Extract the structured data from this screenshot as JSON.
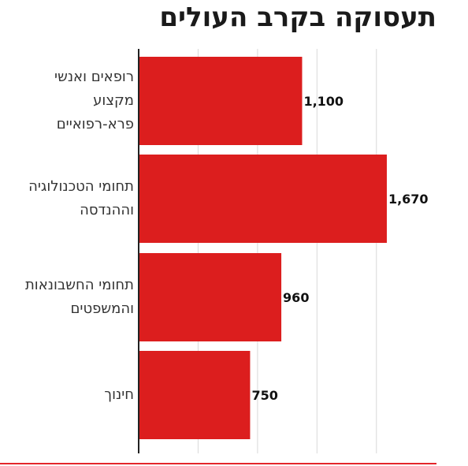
{
  "chart_data": {
    "type": "bar",
    "orientation": "horizontal",
    "title": "תעסוקה בקרב העולים",
    "categories": [
      [
        "רופאים ואנשי",
        "מקצוע",
        "פרא-רפואיים"
      ],
      [
        "תחומי הטכנולוגיה",
        "וההנדסה"
      ],
      [
        "תחומי החשבונאות",
        "והמשפטים"
      ],
      [
        "חינוך"
      ]
    ],
    "values": [
      1100,
      1670,
      960,
      750
    ],
    "value_labels": [
      "1,100",
      "1,670",
      "960",
      "750"
    ],
    "xlim": [
      0,
      2000
    ],
    "grid": true,
    "legend": "none",
    "colors": {
      "bar": "#dc1e1e",
      "grid": "#d9d9d9",
      "axis": "#222222",
      "footer_rule": "#e3262b",
      "value_label": "#111111"
    }
  }
}
